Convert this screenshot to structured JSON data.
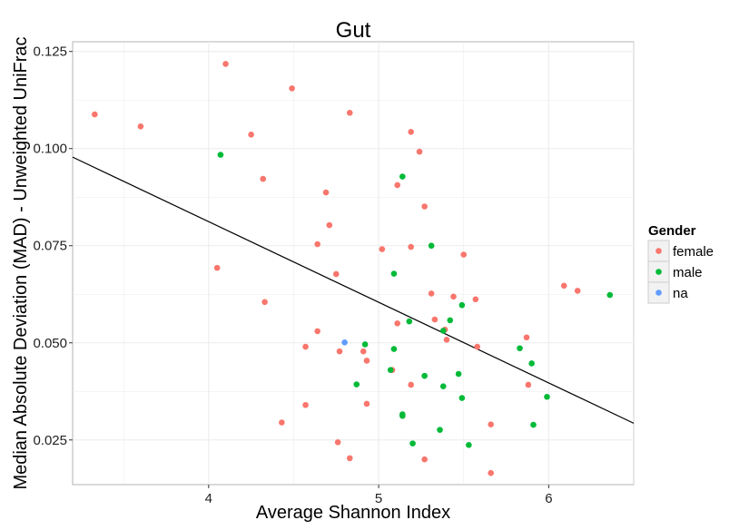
{
  "chart_data": {
    "type": "scatter",
    "title": "Gut",
    "xlabel": "Average Shannon Index",
    "ylabel": "Median Absolute Deviation (MAD) - Unweighted UniFrac",
    "xlim": [
      3.2,
      6.5
    ],
    "ylim": [
      0.0135,
      0.1275
    ],
    "x_ticks": [
      4,
      5,
      6
    ],
    "x_tick_labels": [
      "4",
      "5",
      "6"
    ],
    "y_ticks": [
      0.025,
      0.05,
      0.075,
      0.1,
      0.125
    ],
    "y_tick_labels": [
      "0.025",
      "0.050",
      "0.075",
      "0.100",
      "0.125"
    ],
    "grid": true,
    "legend": {
      "title": "Gender",
      "position": "right"
    },
    "trend_line": {
      "x": [
        3.2,
        6.5
      ],
      "y": [
        0.0978,
        0.0293
      ]
    },
    "colors": {
      "female": "#F8766D",
      "male": "#00BA38",
      "na": "#619CFF",
      "line": "#000000",
      "grid": "#EBEBEB"
    },
    "series": [
      {
        "name": "female",
        "color": "#F8766D",
        "points": [
          [
            3.33,
            0.1088
          ],
          [
            3.6,
            0.1057
          ],
          [
            4.1,
            0.1218
          ],
          [
            4.25,
            0.1036
          ],
          [
            4.32,
            0.0922
          ],
          [
            4.49,
            0.1155
          ],
          [
            4.83,
            0.1092
          ],
          [
            4.69,
            0.0887
          ],
          [
            4.71,
            0.0803
          ],
          [
            4.64,
            0.0754
          ],
          [
            4.05,
            0.0693
          ],
          [
            4.33,
            0.0605
          ],
          [
            4.75,
            0.0677
          ],
          [
            5.19,
            0.1043
          ],
          [
            5.24,
            0.0992
          ],
          [
            5.11,
            0.0906
          ],
          [
            5.27,
            0.0851
          ],
          [
            5.02,
            0.0741
          ],
          [
            5.19,
            0.0747
          ],
          [
            5.5,
            0.0727
          ],
          [
            5.31,
            0.0627
          ],
          [
            5.44,
            0.0619
          ],
          [
            5.57,
            0.0612
          ],
          [
            4.64,
            0.053
          ],
          [
            4.57,
            0.049
          ],
          [
            4.77,
            0.0478
          ],
          [
            4.91,
            0.0478
          ],
          [
            4.93,
            0.0454
          ],
          [
            5.11,
            0.055
          ],
          [
            5.33,
            0.056
          ],
          [
            5.39,
            0.0534
          ],
          [
            5.4,
            0.0508
          ],
          [
            5.58,
            0.049
          ],
          [
            5.87,
            0.0514
          ],
          [
            6.09,
            0.0647
          ],
          [
            6.17,
            0.0634
          ],
          [
            5.08,
            0.043
          ],
          [
            5.19,
            0.0392
          ],
          [
            5.88,
            0.0392
          ],
          [
            4.57,
            0.034
          ],
          [
            4.93,
            0.0343
          ],
          [
            4.43,
            0.0295
          ],
          [
            4.76,
            0.0244
          ],
          [
            4.83,
            0.0203
          ],
          [
            5.27,
            0.02
          ],
          [
            5.66,
            0.029
          ],
          [
            5.66,
            0.0165
          ]
        ]
      },
      {
        "name": "male",
        "color": "#00BA38",
        "points": [
          [
            4.07,
            0.0984
          ],
          [
            5.14,
            0.0928
          ],
          [
            5.31,
            0.075
          ],
          [
            5.09,
            0.0678
          ],
          [
            5.49,
            0.0597
          ],
          [
            5.42,
            0.0558
          ],
          [
            5.18,
            0.0555
          ],
          [
            4.92,
            0.0496
          ],
          [
            5.09,
            0.0484
          ],
          [
            5.38,
            0.0531
          ],
          [
            5.83,
            0.0486
          ],
          [
            5.9,
            0.0447
          ],
          [
            5.07,
            0.043
          ],
          [
            5.27,
            0.0415
          ],
          [
            5.47,
            0.042
          ],
          [
            4.87,
            0.0393
          ],
          [
            5.38,
            0.0388
          ],
          [
            5.49,
            0.0358
          ],
          [
            5.99,
            0.0361
          ],
          [
            5.14,
            0.0316
          ],
          [
            5.14,
            0.0312
          ],
          [
            5.91,
            0.0289
          ],
          [
            5.36,
            0.0276
          ],
          [
            5.2,
            0.0241
          ],
          [
            5.53,
            0.0237
          ],
          [
            6.36,
            0.0623
          ]
        ]
      },
      {
        "name": "na",
        "color": "#619CFF",
        "points": [
          [
            4.8,
            0.0501
          ]
        ]
      }
    ]
  }
}
